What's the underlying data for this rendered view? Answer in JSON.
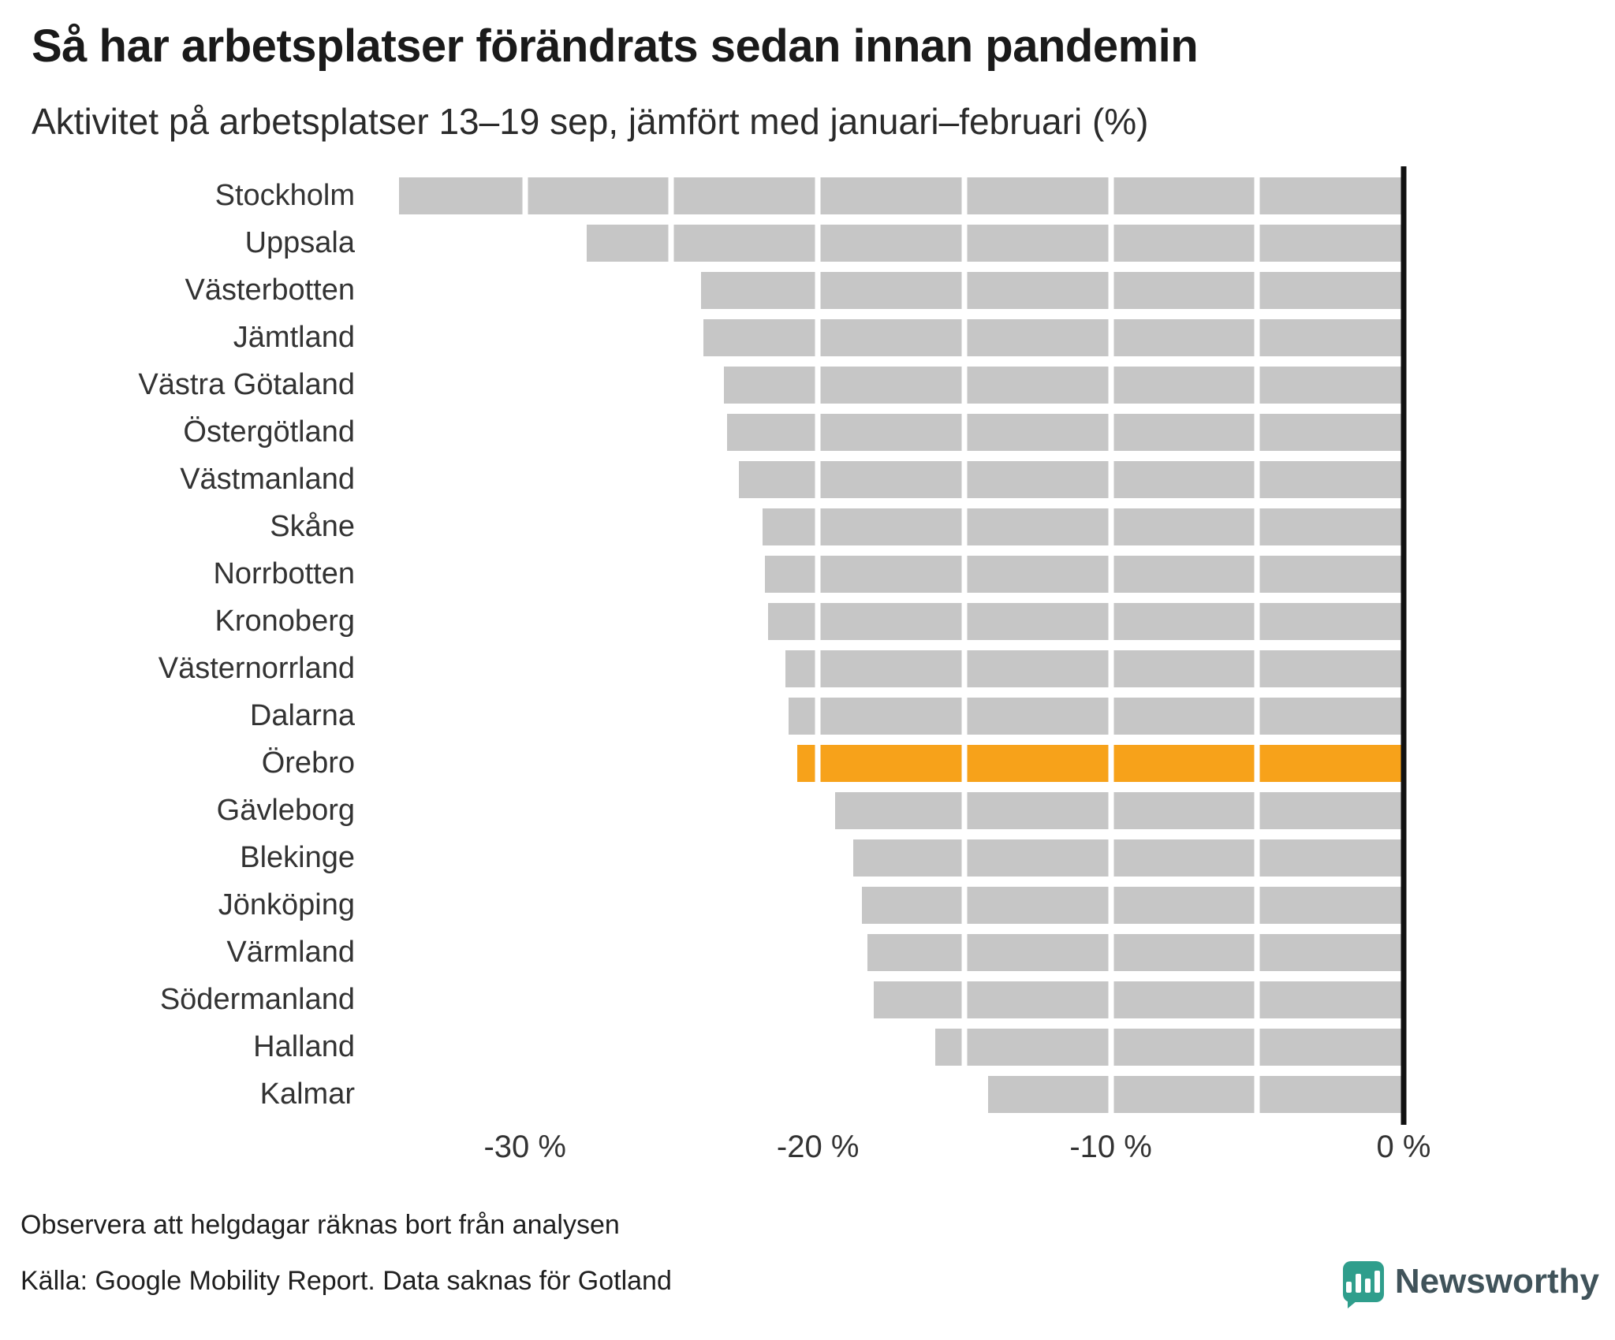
{
  "header": {
    "title": "Så har arbetsplatser förändrats sedan innan pandemin",
    "subtitle": "Aktivitet på arbetsplatser 13–19 sep, jämfört med januari–februari (%)"
  },
  "chart_data": {
    "type": "bar",
    "orientation": "horizontal",
    "title": "Så har arbetsplatser förändrats sedan innan pandemin",
    "xlabel": "Aktivitet på arbetsplatser 13–19 sep, jämfört med januari–februari (%)",
    "categories": [
      "Stockholm",
      "Uppsala",
      "Västerbotten",
      "Jämtland",
      "Västra Götaland",
      "Östergötland",
      "Västmanland",
      "Skåne",
      "Norrbotten",
      "Kronoberg",
      "Västernorrland",
      "Dalarna",
      "Örebro",
      "Gävleborg",
      "Blekinge",
      "Jönköping",
      "Värmland",
      "Södermanland",
      "Halland",
      "Kalmar"
    ],
    "values": [
      -34.3,
      -27.9,
      -24.0,
      -23.9,
      -23.2,
      -23.1,
      -22.7,
      -21.9,
      -21.8,
      -21.7,
      -21.1,
      -21.0,
      -20.7,
      -19.4,
      -18.8,
      -18.5,
      -18.3,
      -18.1,
      -16.0,
      -14.2
    ],
    "highlight_category": "Örebro",
    "xlim": [
      -35,
      0
    ],
    "x_ticks": [
      {
        "value": -30,
        "label": "-30 %"
      },
      {
        "value": -20,
        "label": "-20 %"
      },
      {
        "value": -10,
        "label": "-10 %"
      },
      {
        "value": 0,
        "label": "0 %"
      }
    ],
    "gridline_values": [
      -30,
      -25,
      -20,
      -15,
      -10,
      -5
    ],
    "grid": true,
    "legend": "none",
    "bar_color": "#c6c6c6",
    "highlight_color": "#f7a21a",
    "axis_line_color": "#111111"
  },
  "footer": {
    "note": "Observera att helgdagar räknas bort från analysen",
    "source": "Källa: Google Mobility Report. Data saknas för Gotland",
    "brand": "Newsworthy"
  }
}
